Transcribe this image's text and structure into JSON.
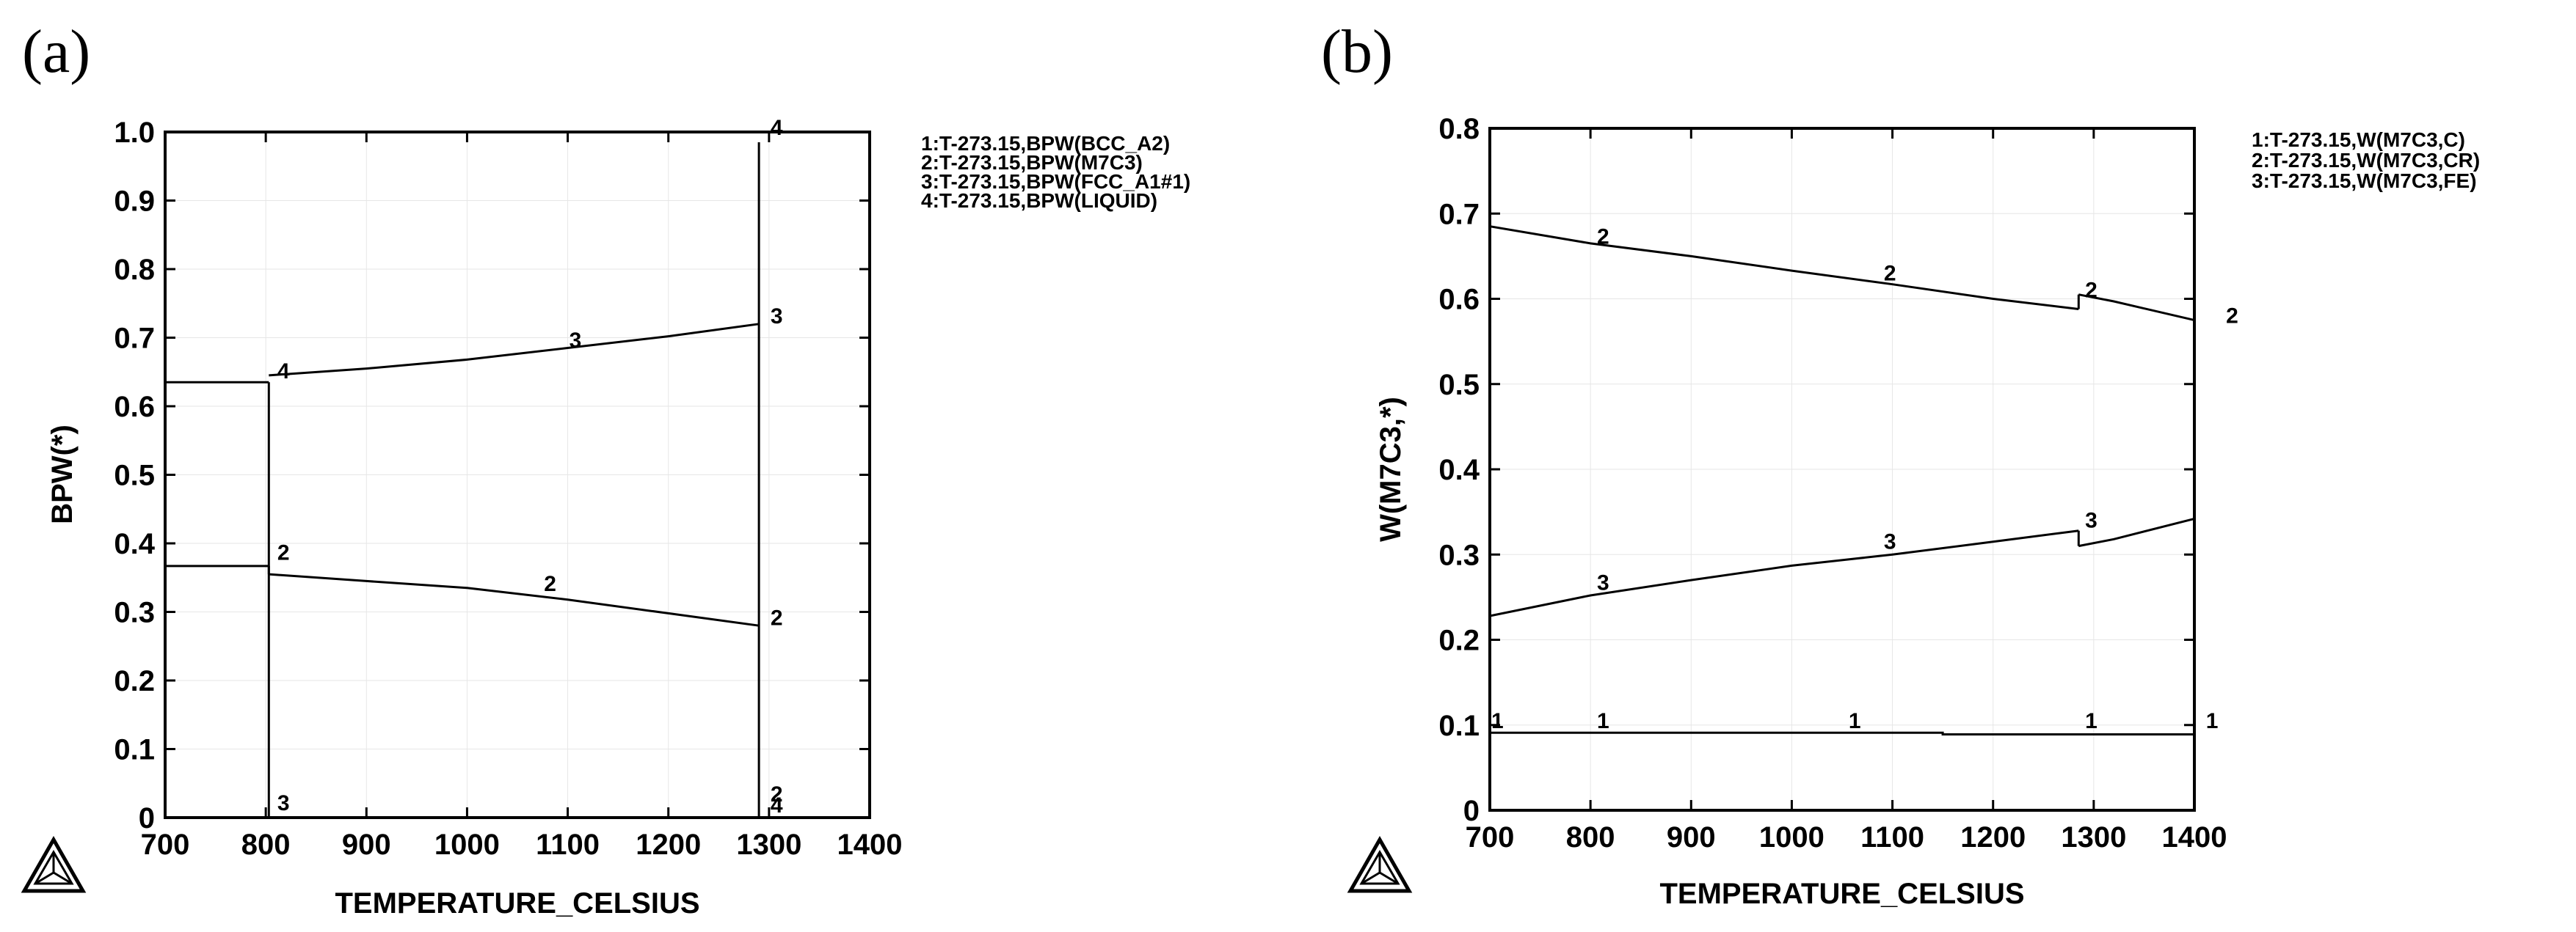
{
  "chart_data": [
    {
      "id": "a",
      "type": "line",
      "panel_label": "(a)",
      "xlabel": "TEMPERATURE_CELSIUS",
      "ylabel": "BPW(*)",
      "xlim": [
        700,
        1400
      ],
      "ylim": [
        0,
        1.0
      ],
      "xticks": [
        "700",
        "800",
        "900",
        "1000",
        "1100",
        "1200",
        "1300",
        "1400"
      ],
      "yticks": [
        "0",
        "0.1",
        "0.2",
        "0.3",
        "0.4",
        "0.5",
        "0.6",
        "0.7",
        "0.8",
        "0.9",
        "1.0"
      ],
      "legend": [
        "1:T-273.15,BPW(BCC_A2)",
        "2:T-273.15,BPW(M7C3)",
        "3:T-273.15,BPW(FCC_A1#1)",
        "4:T-273.15,BPW(LIQUID)"
      ],
      "series": [
        {
          "name": "1",
          "segments": [
            [
              [
                700,
                0.635
              ],
              [
                803,
                0.635
              ]
            ],
            [
              [
                803,
                0.635
              ],
              [
                803,
                0.0
              ]
            ]
          ]
        },
        {
          "name": "2",
          "segments": [
            [
              [
                700,
                0.367
              ],
              [
                803,
                0.367
              ]
            ],
            [
              [
                803,
                0.367
              ],
              [
                803,
                0.355
              ]
            ],
            [
              [
                803,
                0.355
              ],
              [
                900,
                0.345
              ],
              [
                1000,
                0.335
              ],
              [
                1100,
                0.318
              ],
              [
                1200,
                0.298
              ],
              [
                1290,
                0.28
              ]
            ]
          ]
        },
        {
          "name": "3",
          "segments": [
            [
              [
                803,
                0.645
              ],
              [
                900,
                0.655
              ],
              [
                1000,
                0.668
              ],
              [
                1100,
                0.685
              ],
              [
                1200,
                0.702
              ],
              [
                1290,
                0.72
              ]
            ]
          ]
        },
        {
          "name": "4",
          "segments": [
            [
              [
                1290,
                0.0
              ],
              [
                1290,
                0.985
              ]
            ]
          ]
        }
      ],
      "curve_labels": [
        {
          "text": "4",
          "x": 810,
          "y": 0.645
        },
        {
          "text": "3",
          "x": 1100,
          "y": 0.69
        },
        {
          "text": "3",
          "x": 1300,
          "y": 0.725
        },
        {
          "text": "4",
          "x": 1300,
          "y": 1.0
        },
        {
          "text": "2",
          "x": 810,
          "y": 0.38
        },
        {
          "text": "2",
          "x": 1075,
          "y": 0.335
        },
        {
          "text": "2",
          "x": 1300,
          "y": 0.285
        },
        {
          "text": "3",
          "x": 810,
          "y": 0.015
        },
        {
          "text": "2",
          "x": 1300,
          "y": 0.028
        },
        {
          "text": "4",
          "x": 1300,
          "y": 0.012
        }
      ]
    },
    {
      "id": "b",
      "type": "line",
      "panel_label": "(b)",
      "xlabel": "TEMPERATURE_CELSIUS",
      "ylabel": "W(M7C3,*)",
      "xlim": [
        700,
        1400
      ],
      "ylim": [
        0,
        0.8
      ],
      "xticks": [
        "700",
        "800",
        "900",
        "1000",
        "1100",
        "1200",
        "1300",
        "1400"
      ],
      "yticks": [
        "0",
        "0.1",
        "0.2",
        "0.3",
        "0.4",
        "0.5",
        "0.6",
        "0.7",
        "0.8"
      ],
      "legend": [
        "1:T-273.15,W(M7C3,C)",
        "2:T-273.15,W(M7C3,CR)",
        "3:T-273.15,W(M7C3,FE)"
      ],
      "series": [
        {
          "name": "1",
          "segments": [
            [
              [
                700,
                0.091
              ],
              [
                1150,
                0.091
              ],
              [
                1150,
                0.089
              ],
              [
                1400,
                0.089
              ]
            ]
          ]
        },
        {
          "name": "2",
          "segments": [
            [
              [
                700,
                0.685
              ],
              [
                800,
                0.665
              ],
              [
                900,
                0.65
              ],
              [
                1000,
                0.633
              ],
              [
                1100,
                0.617
              ],
              [
                1200,
                0.6
              ],
              [
                1285,
                0.588
              ]
            ],
            [
              [
                1285,
                0.588
              ],
              [
                1285,
                0.605
              ]
            ],
            [
              [
                1285,
                0.605
              ],
              [
                1320,
                0.597
              ],
              [
                1400,
                0.575
              ]
            ]
          ]
        },
        {
          "name": "3",
          "segments": [
            [
              [
                700,
                0.228
              ],
              [
                800,
                0.252
              ],
              [
                900,
                0.27
              ],
              [
                1000,
                0.287
              ],
              [
                1100,
                0.3
              ],
              [
                1200,
                0.315
              ],
              [
                1285,
                0.328
              ]
            ],
            [
              [
                1285,
                0.328
              ],
              [
                1285,
                0.31
              ]
            ],
            [
              [
                1285,
                0.31
              ],
              [
                1320,
                0.318
              ],
              [
                1400,
                0.342
              ]
            ]
          ]
        }
      ],
      "curve_labels": [
        {
          "text": "2",
          "x": 805,
          "y": 0.668
        },
        {
          "text": "2",
          "x": 1090,
          "y": 0.625
        },
        {
          "text": "2",
          "x": 1290,
          "y": 0.605
        },
        {
          "text": "2",
          "x": 1430,
          "y": 0.575
        },
        {
          "text": "3",
          "x": 805,
          "y": 0.262
        },
        {
          "text": "3",
          "x": 1090,
          "y": 0.31
        },
        {
          "text": "3",
          "x": 1290,
          "y": 0.335
        },
        {
          "text": "1",
          "x": 805,
          "y": 0.1
        },
        {
          "text": "1",
          "x": 1055,
          "y": 0.1
        },
        {
          "text": "1",
          "x": 1290,
          "y": 0.1
        },
        {
          "text": "1",
          "x": 700,
          "y": 0.1
        },
        {
          "text": "1",
          "x": 1410,
          "y": 0.1
        }
      ]
    }
  ]
}
